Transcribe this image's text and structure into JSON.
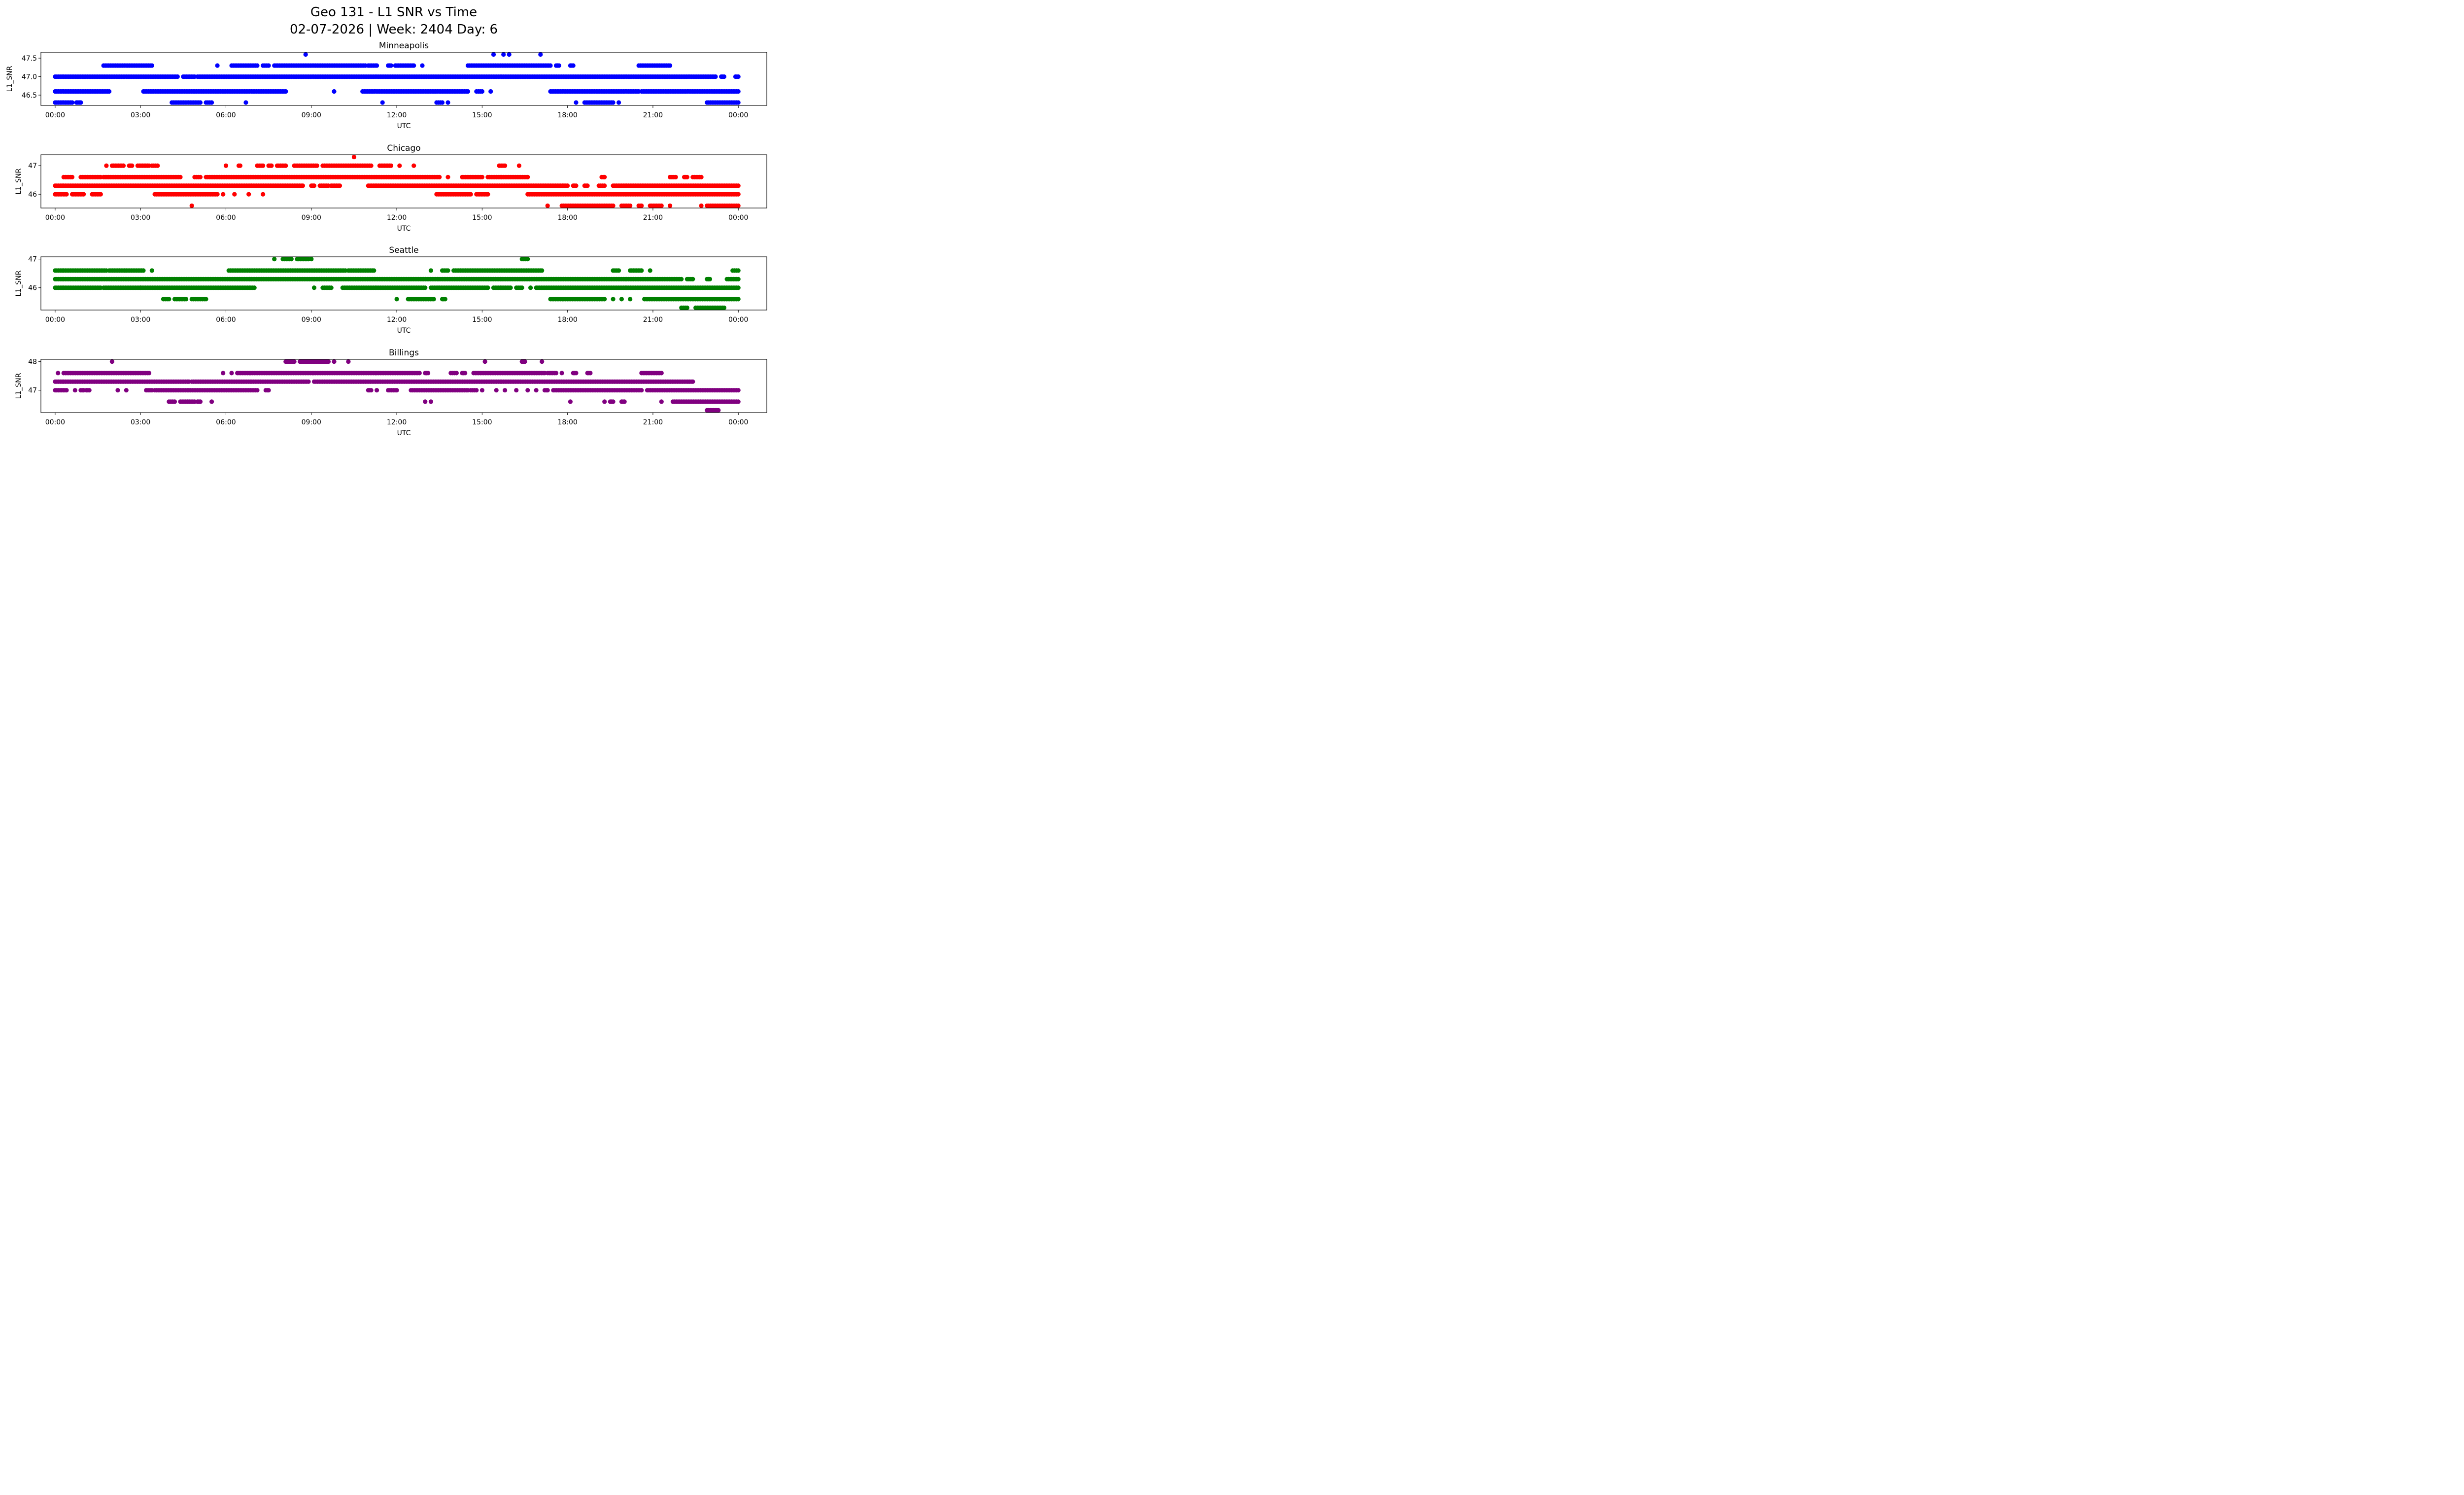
{
  "chart_data": {
    "type": "scatter",
    "title": "Geo 131 - L1 SNR vs Time",
    "subtitle": "02-07-2026 | Week: 2404 Day: 6",
    "xlabel": "UTC",
    "ylabel": "L1_SNR",
    "xlim_hours": [
      -0.5,
      25.0
    ],
    "xticks": [
      {
        "h": 0,
        "label": "00:00"
      },
      {
        "h": 3,
        "label": "03:00"
      },
      {
        "h": 6,
        "label": "06:00"
      },
      {
        "h": 9,
        "label": "09:00"
      },
      {
        "h": 12,
        "label": "12:00"
      },
      {
        "h": 15,
        "label": "15:00"
      },
      {
        "h": 18,
        "label": "18:00"
      },
      {
        "h": 21,
        "label": "21:00"
      },
      {
        "h": 24,
        "label": "00:00"
      }
    ],
    "grid": false,
    "panels": [
      {
        "title": "Minneapolis",
        "color": "#0000ff",
        "ylim": [
          46.22,
          47.66
        ],
        "yticks": [
          {
            "v": 46.5,
            "label": "46.5"
          },
          {
            "v": 47.0,
            "label": "47.0"
          },
          {
            "v": 47.5,
            "label": "47.5"
          }
        ],
        "runs": [
          {
            "y": 47.6,
            "ranges": [
              [
                8.8,
                8.8
              ],
              [
                15.4,
                15.4
              ],
              [
                15.75,
                15.75
              ],
              [
                15.95,
                15.95
              ],
              [
                17.05,
                17.05
              ]
            ]
          },
          {
            "y": 47.3,
            "ranges": [
              [
                1.7,
                3.4
              ],
              [
                5.7,
                5.7
              ],
              [
                6.2,
                7.1
              ],
              [
                7.3,
                7.5
              ],
              [
                7.7,
                10.9
              ],
              [
                11.0,
                11.3
              ],
              [
                11.7,
                11.8
              ],
              [
                11.95,
                12.6
              ],
              [
                12.9,
                12.9
              ],
              [
                14.5,
                17.4
              ],
              [
                17.6,
                17.7
              ],
              [
                18.1,
                18.2
              ],
              [
                20.5,
                21.6
              ]
            ]
          },
          {
            "y": 47.0,
            "ranges": [
              [
                0.0,
                4.3
              ],
              [
                4.5,
                4.9
              ],
              [
                5.0,
                23.2
              ],
              [
                23.4,
                23.5
              ],
              [
                23.9,
                24.0
              ]
            ]
          },
          {
            "y": 46.6,
            "ranges": [
              [
                0.0,
                1.9
              ],
              [
                3.1,
                8.1
              ],
              [
                9.8,
                9.8
              ],
              [
                10.8,
                14.5
              ],
              [
                14.8,
                15.0
              ],
              [
                15.3,
                15.3
              ],
              [
                17.4,
                20.5
              ],
              [
                20.6,
                24.0
              ]
            ]
          },
          {
            "y": 46.3,
            "ranges": [
              [
                0.0,
                0.6
              ],
              [
                0.75,
                0.9
              ],
              [
                4.1,
                5.1
              ],
              [
                5.3,
                5.5
              ],
              [
                6.7,
                6.7
              ],
              [
                11.5,
                11.5
              ],
              [
                13.4,
                13.6
              ],
              [
                13.8,
                13.8
              ],
              [
                18.3,
                18.3
              ],
              [
                18.6,
                19.6
              ],
              [
                19.8,
                19.8
              ],
              [
                22.9,
                24.0
              ]
            ]
          }
        ]
      },
      {
        "title": "Chicago",
        "color": "#ff0000",
        "ylim": [
          45.52,
          47.38
        ],
        "yticks": [
          {
            "v": 46,
            "label": "46"
          },
          {
            "v": 47,
            "label": "47"
          }
        ],
        "runs": [
          {
            "y": 47.3,
            "ranges": [
              [
                10.5,
                10.5
              ]
            ]
          },
          {
            "y": 47.0,
            "ranges": [
              [
                1.8,
                1.8
              ],
              [
                2.0,
                2.4
              ],
              [
                2.6,
                2.7
              ],
              [
                2.9,
                3.3
              ],
              [
                3.4,
                3.6
              ],
              [
                6.0,
                6.0
              ],
              [
                6.45,
                6.5
              ],
              [
                7.1,
                7.3
              ],
              [
                7.5,
                7.6
              ],
              [
                7.8,
                8.1
              ],
              [
                8.4,
                9.2
              ],
              [
                9.4,
                11.1
              ],
              [
                11.4,
                11.8
              ],
              [
                12.1,
                12.1
              ],
              [
                12.6,
                12.6
              ],
              [
                15.6,
                15.8
              ],
              [
                16.3,
                16.3
              ]
            ]
          },
          {
            "y": 46.6,
            "ranges": [
              [
                0.3,
                0.6
              ],
              [
                0.9,
                1.6
              ],
              [
                1.7,
                4.4
              ],
              [
                4.9,
                5.1
              ],
              [
                5.3,
                13.5
              ],
              [
                13.8,
                13.8
              ],
              [
                14.3,
                15.0
              ],
              [
                15.2,
                16.6
              ],
              [
                19.2,
                19.3
              ],
              [
                21.6,
                21.8
              ],
              [
                22.1,
                22.2
              ],
              [
                22.4,
                22.7
              ]
            ]
          },
          {
            "y": 46.3,
            "ranges": [
              [
                0.0,
                8.7
              ],
              [
                9.0,
                9.1
              ],
              [
                9.3,
                9.6
              ],
              [
                9.7,
                10.0
              ],
              [
                11.0,
                18.0
              ],
              [
                18.2,
                18.3
              ],
              [
                18.6,
                18.7
              ],
              [
                19.1,
                19.3
              ],
              [
                19.6,
                24.0
              ]
            ]
          },
          {
            "y": 46.0,
            "ranges": [
              [
                0.0,
                0.4
              ],
              [
                0.6,
                1.0
              ],
              [
                1.3,
                1.6
              ],
              [
                3.5,
                5.7
              ],
              [
                5.9,
                5.9
              ],
              [
                6.3,
                6.3
              ],
              [
                6.8,
                6.8
              ],
              [
                7.3,
                7.3
              ],
              [
                13.4,
                14.6
              ],
              [
                14.8,
                15.2
              ],
              [
                16.6,
                24.0
              ]
            ]
          },
          {
            "y": 45.6,
            "ranges": [
              [
                4.8,
                4.8
              ],
              [
                17.3,
                17.3
              ],
              [
                17.8,
                19.6
              ],
              [
                19.9,
                20.2
              ],
              [
                20.5,
                20.6
              ],
              [
                20.9,
                21.3
              ],
              [
                21.6,
                21.6
              ],
              [
                22.7,
                22.7
              ],
              [
                22.9,
                24.0
              ]
            ]
          }
        ]
      },
      {
        "title": "Seattle",
        "color": "#008000",
        "ylim": [
          45.22,
          47.08
        ],
        "yticks": [
          {
            "v": 46,
            "label": "46"
          },
          {
            "v": 47,
            "label": "47"
          }
        ],
        "runs": [
          {
            "y": 47.0,
            "ranges": [
              [
                7.7,
                7.7
              ],
              [
                8.0,
                8.3
              ],
              [
                8.5,
                8.9
              ],
              [
                9.0,
                9.0
              ],
              [
                16.4,
                16.6
              ]
            ]
          },
          {
            "y": 46.6,
            "ranges": [
              [
                0.0,
                1.8
              ],
              [
                1.9,
                3.1
              ],
              [
                3.4,
                3.4
              ],
              [
                6.1,
                10.2
              ],
              [
                10.3,
                11.2
              ],
              [
                13.2,
                13.2
              ],
              [
                13.6,
                13.8
              ],
              [
                14.0,
                17.1
              ],
              [
                19.6,
                19.8
              ],
              [
                20.2,
                20.6
              ],
              [
                20.9,
                20.9
              ],
              [
                23.8,
                24.0
              ]
            ]
          },
          {
            "y": 46.3,
            "ranges": [
              [
                0.0,
                22.0
              ],
              [
                22.2,
                22.4
              ],
              [
                22.9,
                23.0
              ],
              [
                23.6,
                24.0
              ]
            ]
          },
          {
            "y": 46.0,
            "ranges": [
              [
                0.0,
                1.6
              ],
              [
                1.7,
                3.0
              ],
              [
                3.0,
                7.0
              ],
              [
                9.1,
                9.1
              ],
              [
                9.4,
                9.7
              ],
              [
                10.1,
                13.0
              ],
              [
                13.2,
                15.2
              ],
              [
                15.4,
                16.0
              ],
              [
                16.2,
                16.4
              ],
              [
                16.7,
                16.7
              ],
              [
                16.9,
                24.0
              ]
            ]
          },
          {
            "y": 45.6,
            "ranges": [
              [
                3.8,
                4.0
              ],
              [
                4.2,
                4.6
              ],
              [
                4.8,
                5.3
              ],
              [
                12.0,
                12.0
              ],
              [
                12.4,
                13.3
              ],
              [
                13.6,
                13.7
              ],
              [
                17.4,
                19.3
              ],
              [
                19.6,
                19.6
              ],
              [
                19.9,
                19.9
              ],
              [
                20.2,
                20.2
              ],
              [
                20.7,
                24.0
              ]
            ]
          },
          {
            "y": 45.3,
            "ranges": [
              [
                22.0,
                22.2
              ],
              [
                22.5,
                23.5
              ]
            ]
          }
        ]
      },
      {
        "title": "Billings",
        "color": "#800080",
        "ylim": [
          46.22,
          48.08
        ],
        "yticks": [
          {
            "v": 47,
            "label": "47"
          },
          {
            "v": 48,
            "label": "48"
          }
        ],
        "runs": [
          {
            "y": 48.0,
            "ranges": [
              [
                2.0,
                2.0
              ],
              [
                8.1,
                8.4
              ],
              [
                8.6,
                9.6
              ],
              [
                9.8,
                9.8
              ],
              [
                10.3,
                10.3
              ],
              [
                15.1,
                15.1
              ],
              [
                16.4,
                16.5
              ],
              [
                17.1,
                17.1
              ]
            ]
          },
          {
            "y": 47.6,
            "ranges": [
              [
                0.1,
                0.1
              ],
              [
                0.3,
                3.3
              ],
              [
                5.9,
                5.9
              ],
              [
                6.2,
                6.2
              ],
              [
                6.4,
                12.8
              ],
              [
                13.0,
                13.1
              ],
              [
                13.9,
                14.1
              ],
              [
                14.3,
                14.4
              ],
              [
                14.7,
                17.2
              ],
              [
                17.3,
                17.6
              ],
              [
                17.8,
                17.8
              ],
              [
                18.2,
                18.3
              ],
              [
                18.7,
                18.8
              ],
              [
                20.6,
                21.3
              ]
            ]
          },
          {
            "y": 47.3,
            "ranges": [
              [
                0.0,
                4.7
              ],
              [
                4.8,
                8.9
              ],
              [
                9.1,
                22.4
              ]
            ]
          },
          {
            "y": 47.0,
            "ranges": [
              [
                0.0,
                0.4
              ],
              [
                0.7,
                0.7
              ],
              [
                0.9,
                1.0
              ],
              [
                1.1,
                1.2
              ],
              [
                2.2,
                2.2
              ],
              [
                2.5,
                2.5
              ],
              [
                3.2,
                3.4
              ],
              [
                3.5,
                7.1
              ],
              [
                7.4,
                7.5
              ],
              [
                11.0,
                11.1
              ],
              [
                11.3,
                11.3
              ],
              [
                11.7,
                12.0
              ],
              [
                12.5,
                14.5
              ],
              [
                14.6,
                14.8
              ],
              [
                15.0,
                15.0
              ],
              [
                15.5,
                15.5
              ],
              [
                15.8,
                15.8
              ],
              [
                16.2,
                16.2
              ],
              [
                16.6,
                16.6
              ],
              [
                16.9,
                16.9
              ],
              [
                17.2,
                17.3
              ],
              [
                17.5,
                20.6
              ],
              [
                20.8,
                24.0
              ]
            ]
          },
          {
            "y": 46.6,
            "ranges": [
              [
                4.0,
                4.2
              ],
              [
                4.4,
                4.9
              ],
              [
                5.0,
                5.1
              ],
              [
                5.5,
                5.5
              ],
              [
                13.0,
                13.0
              ],
              [
                13.2,
                13.2
              ],
              [
                18.1,
                18.1
              ],
              [
                19.3,
                19.3
              ],
              [
                19.5,
                19.6
              ],
              [
                19.9,
                20.0
              ],
              [
                21.3,
                21.3
              ],
              [
                21.7,
                24.0
              ]
            ]
          },
          {
            "y": 46.3,
            "ranges": [
              [
                22.9,
                23.3
              ]
            ]
          }
        ]
      }
    ]
  }
}
